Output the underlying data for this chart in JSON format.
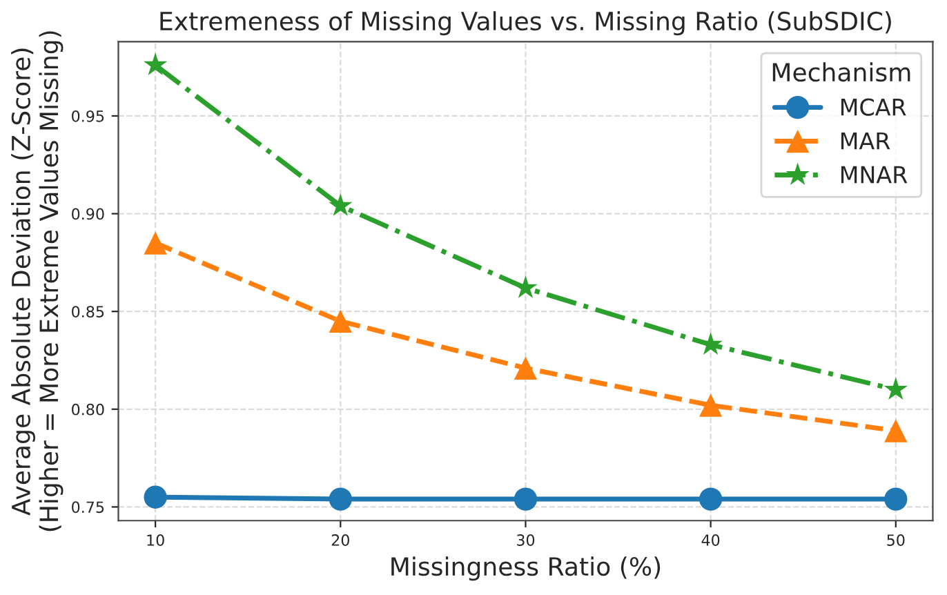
{
  "chart_data": {
    "type": "line",
    "title": "Extremeness of Missing Values vs. Missing Ratio (SubSDIC)",
    "xlabel": "Missingness Ratio (%)",
    "ylabel": "Average Absolute Deviation (Z-Score)\n(Higher = More Extreme Values Missing)",
    "legend_title": "Mechanism",
    "x": [
      10,
      20,
      30,
      40,
      50
    ],
    "series": [
      {
        "name": "MCAR",
        "color": "#1f77b4",
        "marker": "circle",
        "line_style": "solid",
        "values": [
          0.755,
          0.754,
          0.754,
          0.754,
          0.754
        ]
      },
      {
        "name": "MAR",
        "color": "#ff7f0e",
        "marker": "triangle",
        "line_style": "dashed",
        "values": [
          0.885,
          0.845,
          0.821,
          0.802,
          0.789
        ]
      },
      {
        "name": "MNAR",
        "color": "#2ca02c",
        "marker": "star",
        "line_style": "dashdot",
        "values": [
          0.976,
          0.904,
          0.862,
          0.833,
          0.81
        ]
      }
    ],
    "xlim": [
      8,
      52
    ],
    "xticks": [
      10,
      20,
      30,
      40,
      50
    ],
    "ylim": [
      0.743,
      0.988
    ],
    "yticks": [
      0.75,
      {
        "value": 0.8,
        "label": "0.80"
      },
      0.85,
      {
        "value": 0.9,
        "label": "0.90"
      },
      0.95
    ],
    "grid": true,
    "legend": "top right"
  }
}
